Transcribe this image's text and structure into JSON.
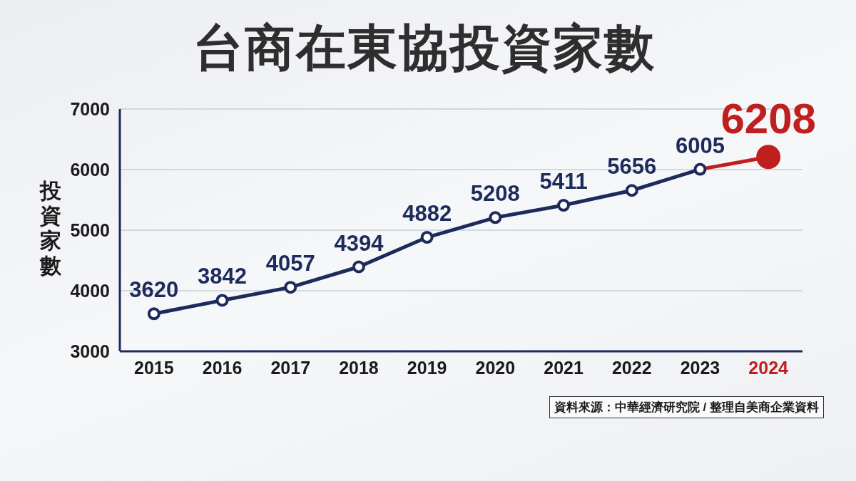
{
  "chart_data": {
    "type": "line",
    "title": "台商在東協投資家數",
    "ylabel": "投資家數",
    "categories": [
      "2015",
      "2016",
      "2017",
      "2018",
      "2019",
      "2020",
      "2021",
      "2022",
      "2023",
      "2024"
    ],
    "series": [
      {
        "color": "#1c2b5a",
        "colors": [
          "#1c2b5a",
          "#1c2b5a",
          "#1c2b5a",
          "#1c2b5a",
          "#1c2b5a",
          "#1c2b5a",
          "#1c2b5a",
          "#1c2b5a",
          "#1c2b5a",
          "#c01f1f"
        ],
        "values": [
          3620,
          3842,
          4057,
          4394,
          4882,
          5208,
          5411,
          5656,
          6005,
          6208
        ]
      }
    ],
    "ylim": [
      3000,
      7000
    ],
    "yticks": [
      3000,
      4000,
      5000,
      6000,
      7000
    ],
    "grid": "y",
    "marker": "circle",
    "data_labels": true,
    "annotations": [
      "資料來源：中華經濟研究院 / 整理自美商企業資料"
    ]
  }
}
